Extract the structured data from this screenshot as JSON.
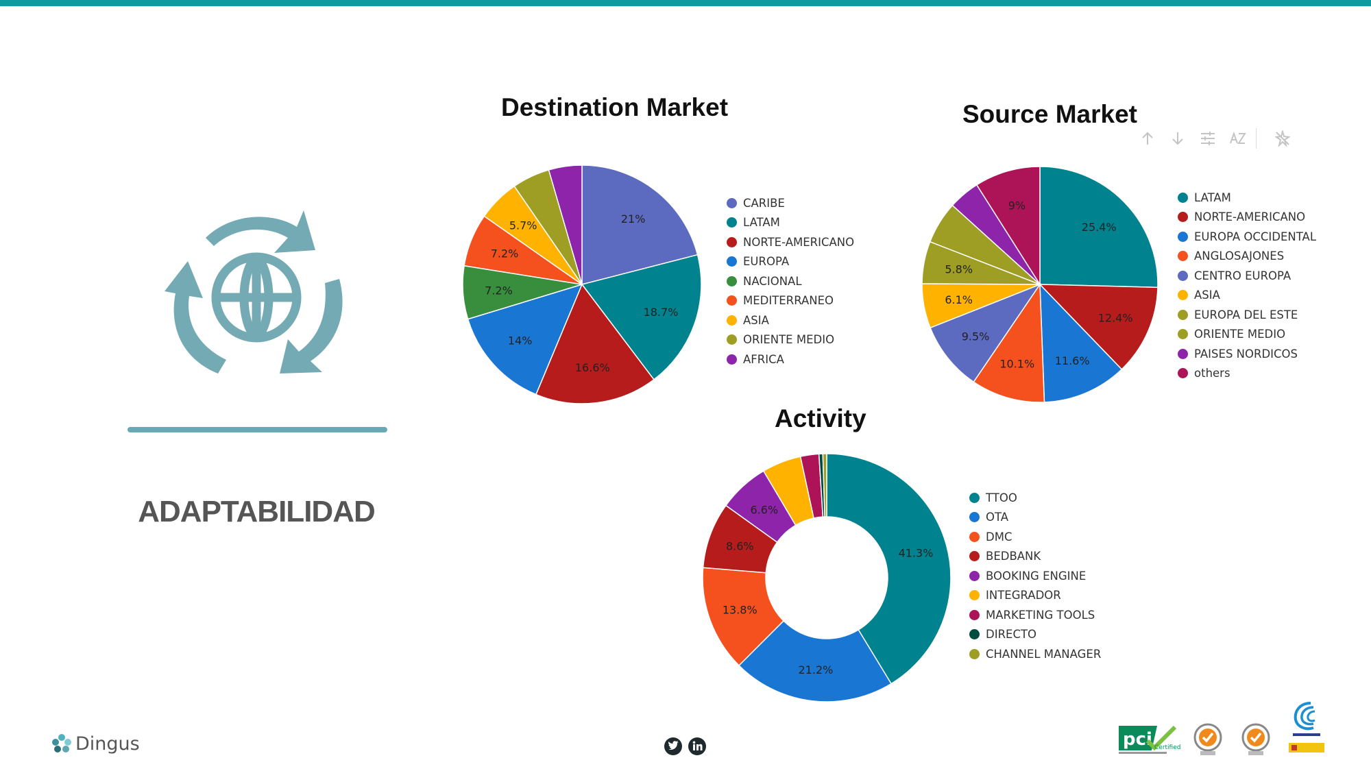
{
  "feature": {
    "label": "ADAPTABILIDAD",
    "icon": "globe-cycle-icon"
  },
  "toolbar": {
    "icons": [
      "arrow-up-icon",
      "arrow-down-icon",
      "sliders-icon",
      "sort-az-icon",
      "pin-icon"
    ]
  },
  "footer": {
    "brand": "Dingus",
    "social": [
      "twitter-icon",
      "linkedin-icon"
    ],
    "certs": {
      "pci": "pci",
      "pci_sub": "Certified",
      "badges": [
        "sgs-badge-1",
        "sgs-badge-2",
        "innovation-badge"
      ]
    }
  },
  "chart_data": [
    {
      "type": "pie",
      "title": "Destination Market",
      "labels": [
        "CARIBE",
        "LATAM",
        "NORTE-AMERICANO",
        "EUROPA",
        "NACIONAL",
        "MEDITERRANEO",
        "ASIA",
        "ORIENTE MEDIO",
        "AFRICA"
      ],
      "values": [
        21,
        18.7,
        16.6,
        14,
        7.2,
        7.2,
        5.7,
        5.1,
        4.5
      ],
      "data_labels": [
        "21%",
        "18.7%",
        "16.6%",
        "14%",
        "7.2%",
        "7.2%",
        "5.7%",
        "",
        ""
      ],
      "colors": [
        "#5c6bc0",
        "#00838f",
        "#b71c1c",
        "#1976d2",
        "#388e3c",
        "#f4511e",
        "#ffb300",
        "#9e9d24",
        "#8e24aa"
      ],
      "legend_position": "right"
    },
    {
      "type": "pie",
      "title": "Source Market",
      "labels": [
        "LATAM",
        "NORTE-AMERICANO",
        "EUROPA OCCIDENTAL",
        "ANGLOSAJONES",
        "CENTRO EUROPA",
        "ASIA",
        "EUROPA DEL ESTE",
        "ORIENTE MEDIO",
        "PAISES NORDICOS",
        "others"
      ],
      "values": [
        25.4,
        12.4,
        11.6,
        10.1,
        9.5,
        6.1,
        5.8,
        5.8,
        4.3,
        9
      ],
      "data_labels": [
        "25.4%",
        "12.4%",
        "11.6%",
        "10.1%",
        "9.5%",
        "6.1%",
        "5.8%",
        "",
        "",
        "9%"
      ],
      "colors": [
        "#00838f",
        "#b71c1c",
        "#1976d2",
        "#f4511e",
        "#5c6bc0",
        "#ffb300",
        "#9e9d24",
        "#9e9d24",
        "#8e24aa",
        "#ad1457"
      ],
      "legend_position": "right"
    },
    {
      "type": "donut",
      "title": "Activity",
      "labels": [
        "TTOO",
        "OTA",
        "DMC",
        "BEDBANK",
        "BOOKING ENGINE",
        "INTEGRADOR",
        "MARKETING TOOLS",
        "DIRECTO",
        "CHANNEL MANAGER"
      ],
      "values": [
        41.3,
        21.2,
        13.8,
        8.6,
        6.6,
        5.1,
        2.4,
        0.5,
        0.5
      ],
      "data_labels": [
        "41.3%",
        "21.2%",
        "13.8%",
        "8.6%",
        "6.6%",
        "",
        "",
        "",
        ""
      ],
      "colors": [
        "#00838f",
        "#1976d2",
        "#f4511e",
        "#b71c1c",
        "#8e24aa",
        "#ffb300",
        "#ad1457",
        "#004d40",
        "#9e9d24"
      ],
      "legend_position": "right"
    }
  ]
}
